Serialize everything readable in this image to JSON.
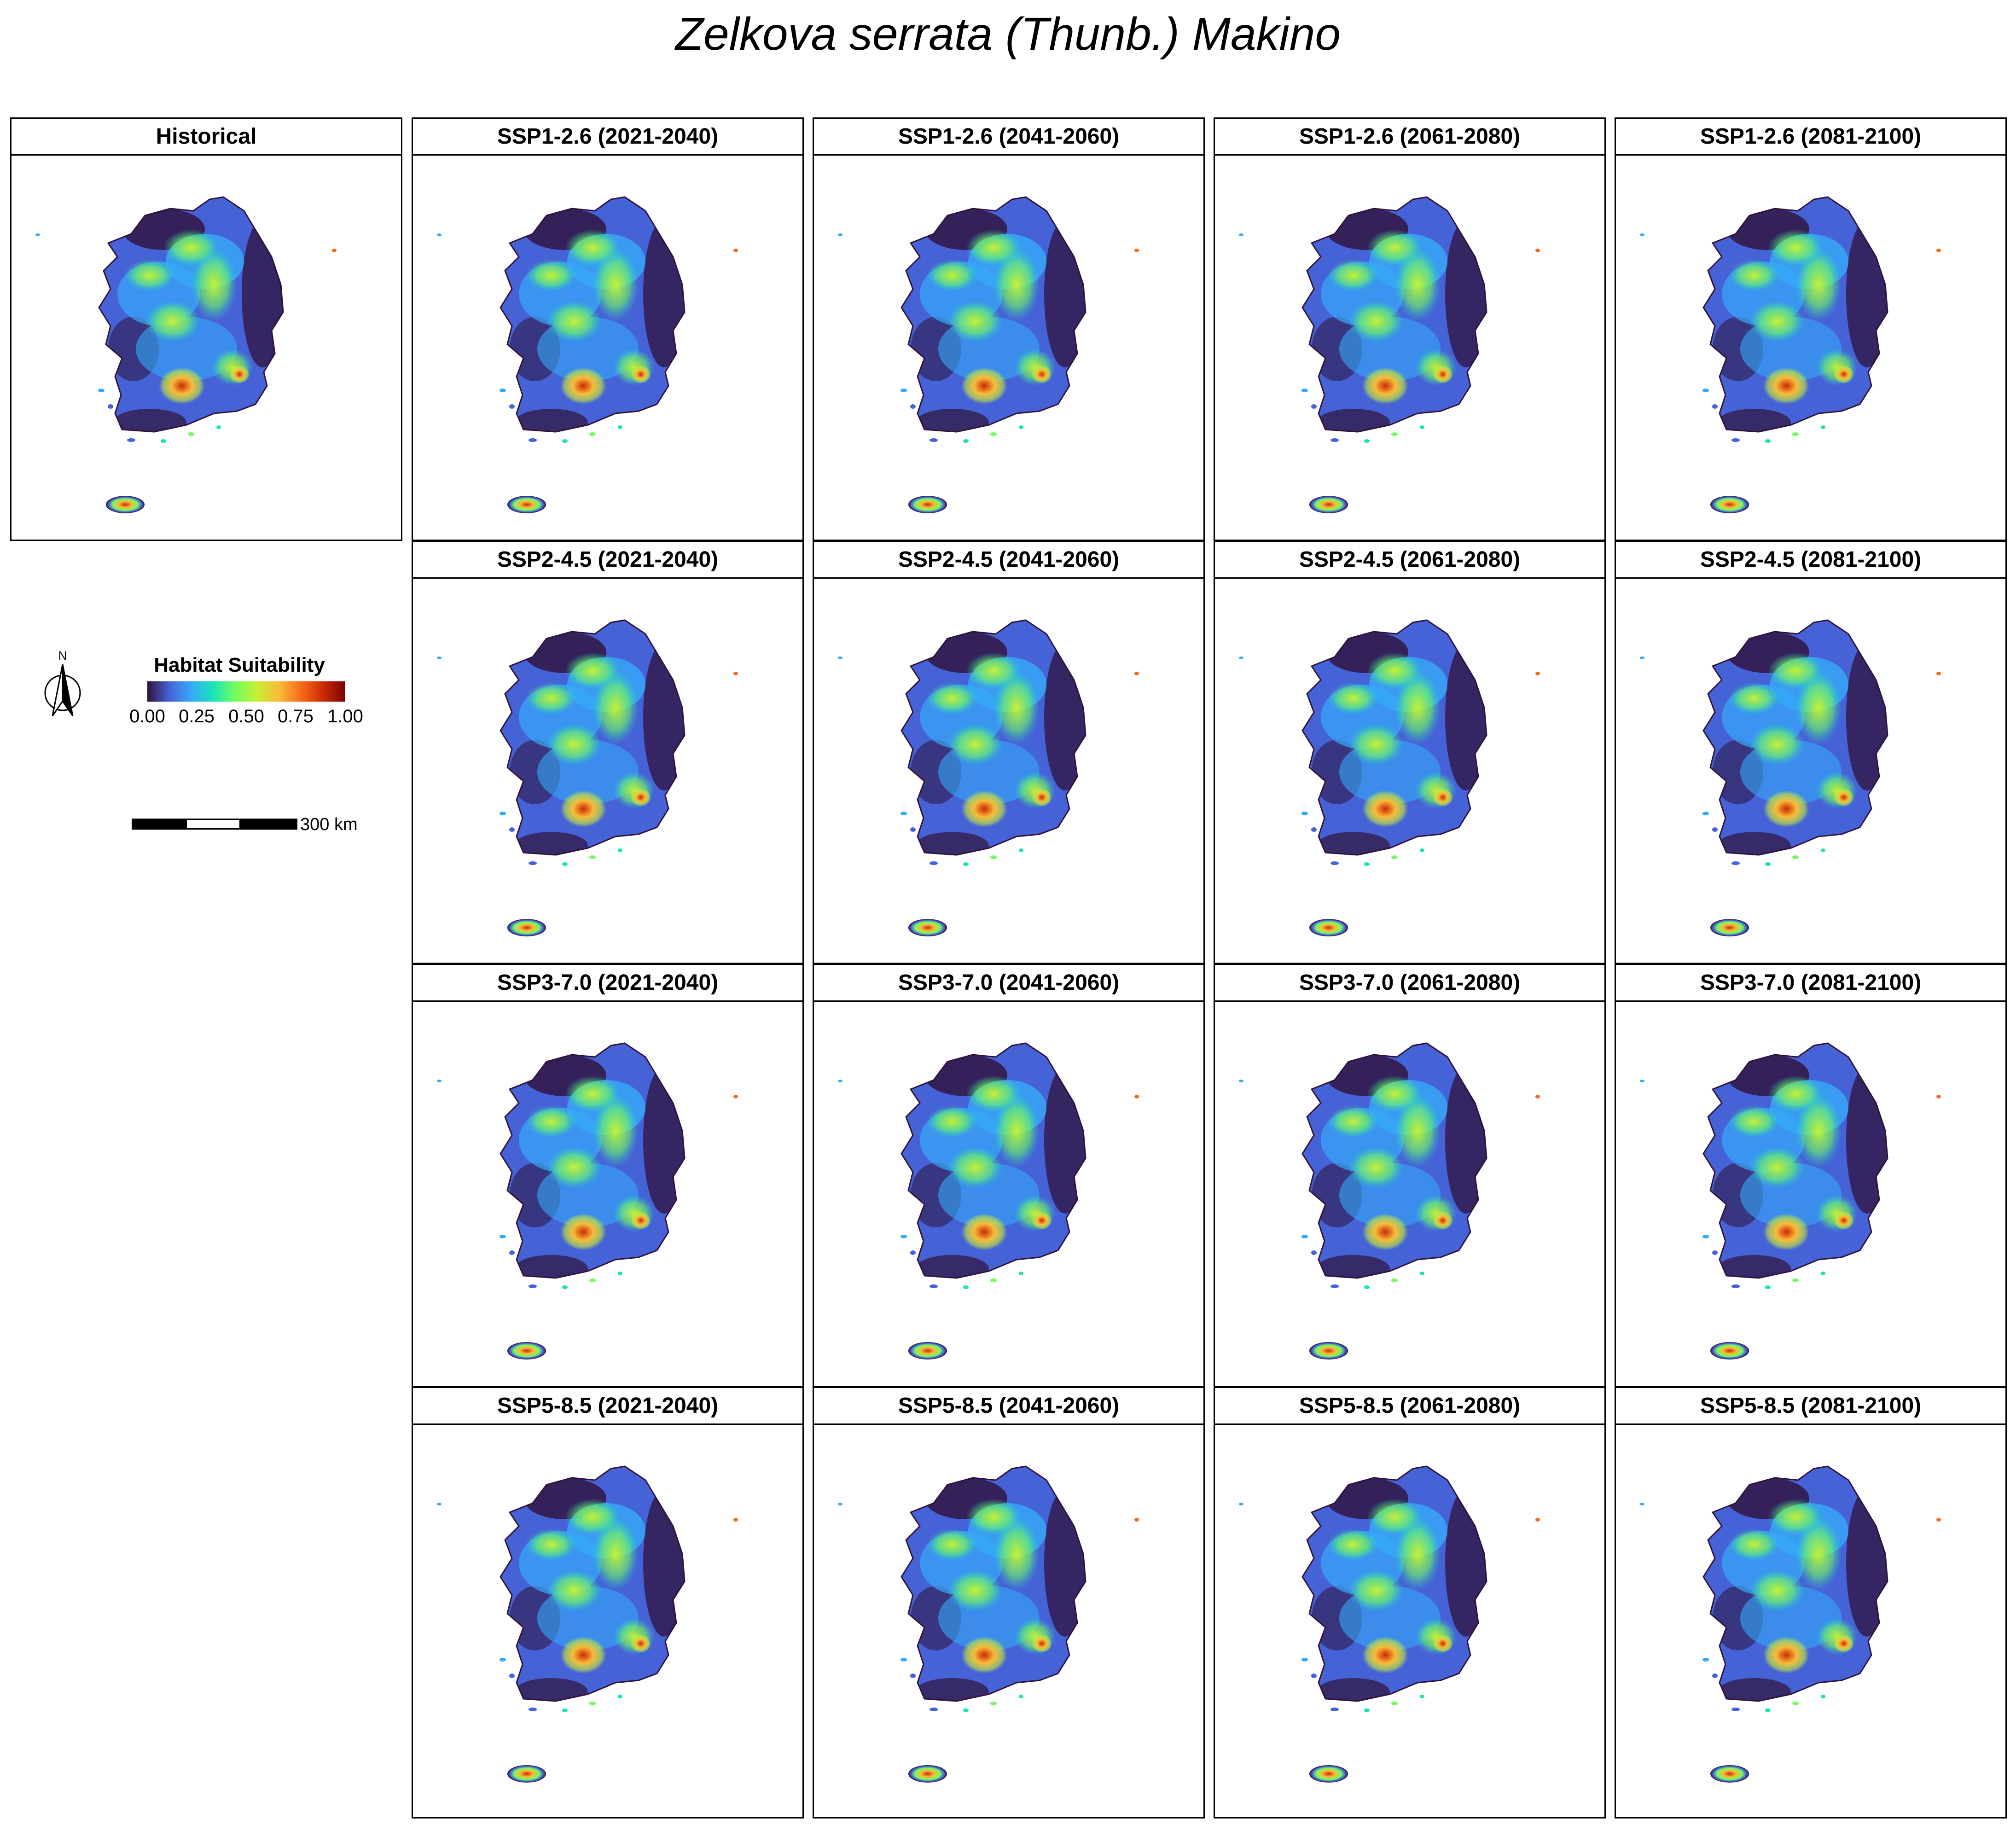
{
  "title": "Zelkova serrata (Thunb.) Makino",
  "legend": {
    "title": "Habitat Suitability",
    "ticks": [
      "0.00",
      "0.25",
      "0.50",
      "0.75",
      "1.00"
    ],
    "colormap": [
      "#30123b",
      "#4662d7",
      "#36aaf9",
      "#1ae4b6",
      "#72fe5e",
      "#c8ef34",
      "#faba39",
      "#f66b19",
      "#ca2a04",
      "#7a0403"
    ],
    "range": [
      0,
      1
    ]
  },
  "north_arrow": {
    "label": "N"
  },
  "scale_bar": {
    "label": "300 km"
  },
  "panels": {
    "historical": "Historical",
    "ssp126": [
      "SSP1-2.6 (2021-2040)",
      "SSP1-2.6 (2041-2060)",
      "SSP1-2.6 (2061-2080)",
      "SSP1-2.6 (2081-2100)"
    ],
    "ssp245": [
      "SSP2-4.5 (2021-2040)",
      "SSP2-4.5 (2041-2060)",
      "SSP2-4.5 (2061-2080)",
      "SSP2-4.5 (2081-2100)"
    ],
    "ssp370": [
      "SSP3-7.0 (2021-2040)",
      "SSP3-7.0 (2041-2060)",
      "SSP3-7.0 (2061-2080)",
      "SSP3-7.0 (2081-2100)"
    ],
    "ssp585": [
      "SSP5-8.5 (2021-2040)",
      "SSP5-8.5 (2041-2060)",
      "SSP5-8.5 (2061-2080)",
      "SSP5-8.5 (2081-2100)"
    ]
  }
}
